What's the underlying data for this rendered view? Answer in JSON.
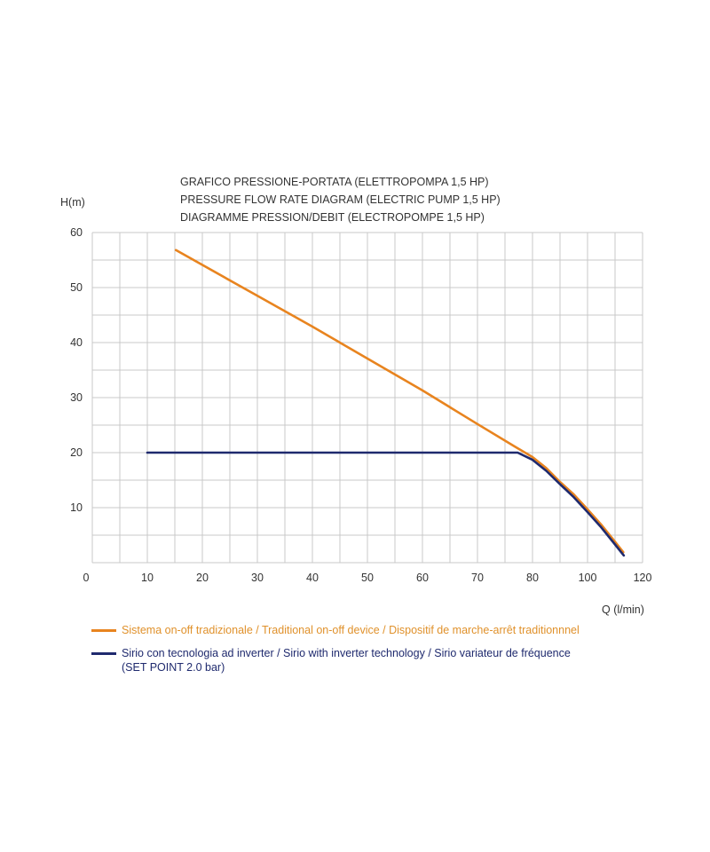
{
  "chart_data": {
    "type": "line",
    "title": [
      "GRAFICO PRESSIONE-PORTATA (ELETTROPOMPA 1,5 HP)",
      "PRESSURE FLOW RATE DIAGRAM (ELECTRIC PUMP 1,5 HP)",
      "DIAGRAMME PRESSION/DEBIT (ELECTROPOMPE 1,5 HP)"
    ],
    "xlabel": "Q (l/min)",
    "ylabel": "H(m)",
    "xticks": [
      "0",
      "10",
      "20",
      "30",
      "40",
      "50",
      "60",
      "70",
      "80",
      "100",
      "120"
    ],
    "xtick_values": [
      0,
      10,
      20,
      30,
      40,
      50,
      60,
      70,
      80,
      100,
      120
    ],
    "yticks": [
      "10",
      "20",
      "30",
      "40",
      "50",
      "60"
    ],
    "ytick_values": [
      10,
      20,
      30,
      40,
      50,
      60
    ],
    "ylim": [
      0,
      60
    ],
    "xlim": [
      0,
      120
    ],
    "grid": true,
    "legend_position": "bottom",
    "series": [
      {
        "name": "Sistema on-off tradizionale / Traditional on-off device / Dispositif de marche-arrêt traditionnnel",
        "color": "#e8841f",
        "x": [
          15.2,
          30,
          40,
          50,
          60,
          70,
          76.8,
          80,
          85,
          89.7,
          95,
          100,
          105,
          110,
          113
        ],
        "y": [
          56.8,
          48.5,
          42.9,
          37.1,
          31.3,
          25.2,
          21.1,
          19.2,
          17.2,
          14.8,
          12.4,
          9.7,
          6.9,
          3.8,
          1.9
        ]
      },
      {
        "name": "Sirio con tecnologia ad inverter / Sirio with inverter technology / Sirio variateur de fréquence",
        "name_line2": "(SET POINT 2.0 bar)",
        "color": "#1f2a6e",
        "x": [
          10,
          77.3,
          80,
          85,
          89.7,
          95,
          100,
          105,
          110,
          113.2
        ],
        "y": [
          20,
          20,
          18.7,
          16.7,
          14.4,
          11.9,
          9.2,
          6.4,
          3.3,
          1.3
        ]
      }
    ]
  }
}
